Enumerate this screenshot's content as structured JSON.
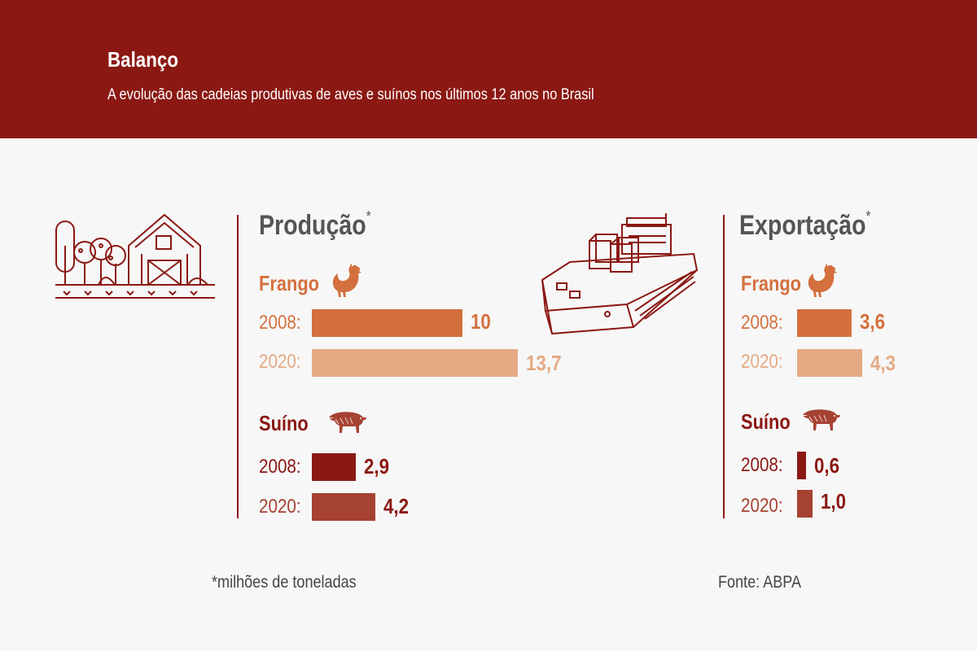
{
  "header": {
    "title": "Balanço",
    "subtitle": "A evolução das cadeias produtivas de aves e suínos nos últimos 12 anos no Brasil"
  },
  "footer": {
    "note": "*milhões de toneladas",
    "source": "Fonte: ABPA"
  },
  "colors": {
    "header": "#8b1813",
    "frango_2008": "#d3703e",
    "frango_2020": "#e5aa84",
    "suino_2008": "#8b1813",
    "suino_2020": "#a64232",
    "text_grey": "#555555"
  },
  "icons": [
    "farm-icon",
    "ship-icon",
    "chicken-icon",
    "pig-icon"
  ],
  "chart_data": [
    {
      "type": "bar",
      "orientation": "horizontal",
      "title": "Produção",
      "title_mark": "*",
      "groups": [
        {
          "name": "Frango",
          "categories": [
            "2008:",
            "2020:"
          ],
          "values": [
            10,
            13.7
          ],
          "labels": [
            "10",
            "13,7"
          ]
        },
        {
          "name": "Suíno",
          "categories": [
            "2008:",
            "2020:"
          ],
          "values": [
            2.9,
            4.2
          ],
          "labels": [
            "2,9",
            "4,2"
          ]
        }
      ]
    },
    {
      "type": "bar",
      "orientation": "horizontal",
      "title": "Exportação",
      "title_mark": "*",
      "groups": [
        {
          "name": "Frango",
          "categories": [
            "2008:",
            "2020:"
          ],
          "values": [
            3.6,
            4.3
          ],
          "labels": [
            "3,6",
            "4,3"
          ]
        },
        {
          "name": "Suíno",
          "categories": [
            "2008:",
            "2020:"
          ],
          "values": [
            0.6,
            1.0
          ],
          "labels": [
            "0,6",
            "1,0"
          ]
        }
      ]
    }
  ]
}
